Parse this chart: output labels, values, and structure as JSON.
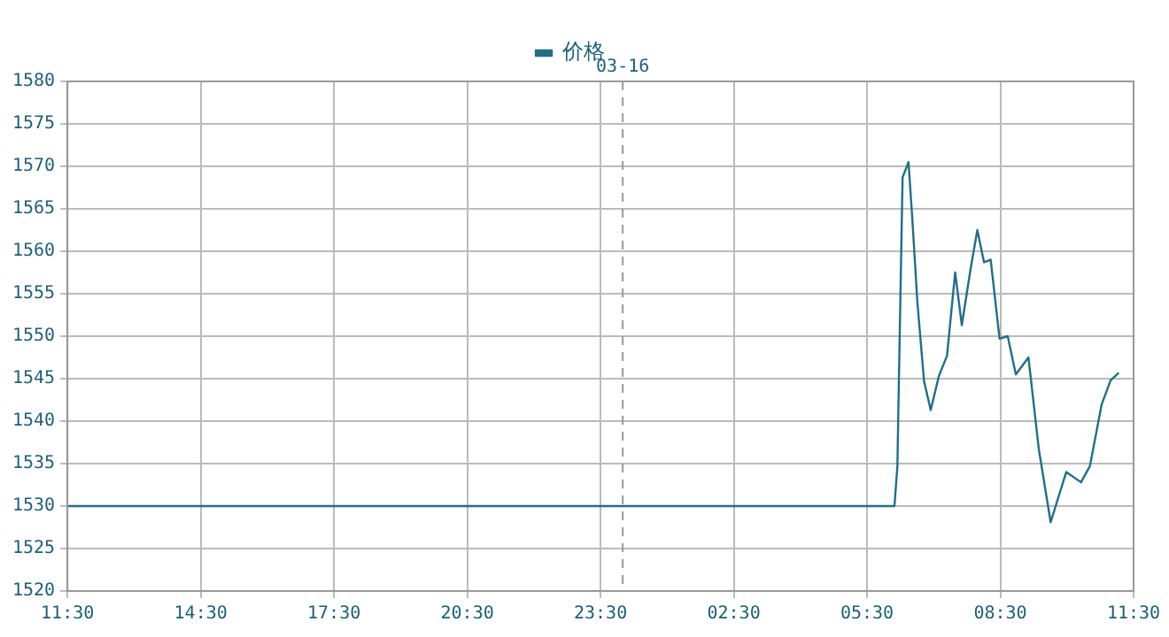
{
  "chart_data": {
    "type": "line",
    "x": [
      "--03-15T11:30",
      "--03-16T06:07",
      "--03-16T06:11",
      "--03-16T06:13",
      "--03-16T06:18",
      "--03-16T06:26",
      "--03-16T06:31",
      "--03-16T06:38",
      "--03-16T06:47",
      "--03-16T06:56",
      "--03-16T07:07",
      "--03-16T07:18",
      "--03-16T07:29",
      "--03-16T07:38",
      "--03-16T07:50",
      "--03-16T07:59",
      "--03-16T08:08",
      "--03-16T08:17",
      "--03-16T08:29",
      "--03-16T08:40",
      "--03-16T08:51",
      "--03-16T09:08",
      "--03-16T09:22",
      "--03-16T09:38",
      "--03-16T09:59",
      "--03-16T10:19",
      "--03-16T10:31",
      "--03-16T10:47",
      "--03-16T10:59",
      "--03-16T11:10"
    ],
    "series": [
      {
        "name": "价格",
        "color": "#1f6f8b",
        "values": [
          1530,
          1530,
          1534.7,
          1544.7,
          1568.7,
          1570.5,
          1564,
          1554,
          1544.7,
          1541.3,
          1545.3,
          1547.7,
          1557.5,
          1551.3,
          1558,
          1562.5,
          1558.7,
          1559,
          1549.7,
          1550,
          1545.5,
          1547.5,
          1536.7,
          1528.1,
          1534,
          1532.8,
          1534.7,
          1542,
          1544.8,
          1545.7
        ]
      }
    ],
    "xlim": [
      "--03-15T11:30",
      "--03-16T11:30"
    ],
    "xticks": [
      {
        "value": "--03-15T11:30",
        "label": "11:30"
      },
      {
        "value": "--03-15T14:30",
        "label": "14:30"
      },
      {
        "value": "--03-15T17:30",
        "label": "17:30"
      },
      {
        "value": "--03-15T20:30",
        "label": "20:30"
      },
      {
        "value": "--03-15T23:30",
        "label": "23:30"
      },
      {
        "value": "--03-16T02:30",
        "label": "02:30"
      },
      {
        "value": "--03-16T05:30",
        "label": "05:30"
      },
      {
        "value": "--03-16T08:30",
        "label": "08:30"
      },
      {
        "value": "--03-16T11:30",
        "label": "11:30"
      }
    ],
    "ylim": [
      1520,
      1580
    ],
    "yticks": [
      1520,
      1525,
      1530,
      1535,
      1540,
      1545,
      1550,
      1555,
      1560,
      1565,
      1570,
      1575,
      1580
    ],
    "ref_lines": [
      {
        "axis": "x",
        "value": "--03-16",
        "label": "03-16",
        "color": "#999999",
        "line_style": "dashed"
      }
    ],
    "grid": true,
    "legend": "top",
    "marker": "none",
    "line_style": "solid"
  }
}
